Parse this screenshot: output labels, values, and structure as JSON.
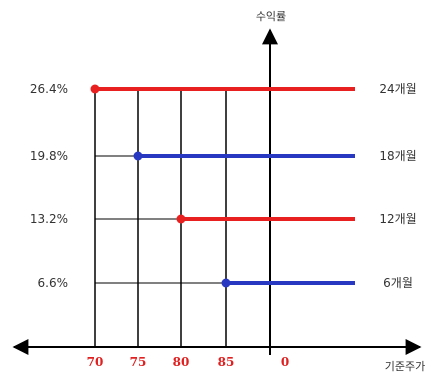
{
  "chart_data": {
    "type": "line",
    "title": "",
    "xlabel": "기준주가",
    "ylabel": "수익률",
    "x_tick_labels": [
      "70",
      "75",
      "80",
      "85",
      "0"
    ],
    "y_tick_labels": [
      "26.4%",
      "19.8%",
      "13.2%",
      "6.6%"
    ],
    "series": [
      {
        "name": "24개월",
        "start_x": 70,
        "y": 26.4,
        "color": "#e82020"
      },
      {
        "name": "18개월",
        "start_x": 75,
        "y": 19.8,
        "color": "#2838c0"
      },
      {
        "name": "12개월",
        "start_x": 80,
        "y": 13.2,
        "color": "#e82020"
      },
      {
        "name": "6개월",
        "start_x": 85,
        "y": 6.6,
        "color": "#2838c0"
      }
    ],
    "grid": true
  }
}
